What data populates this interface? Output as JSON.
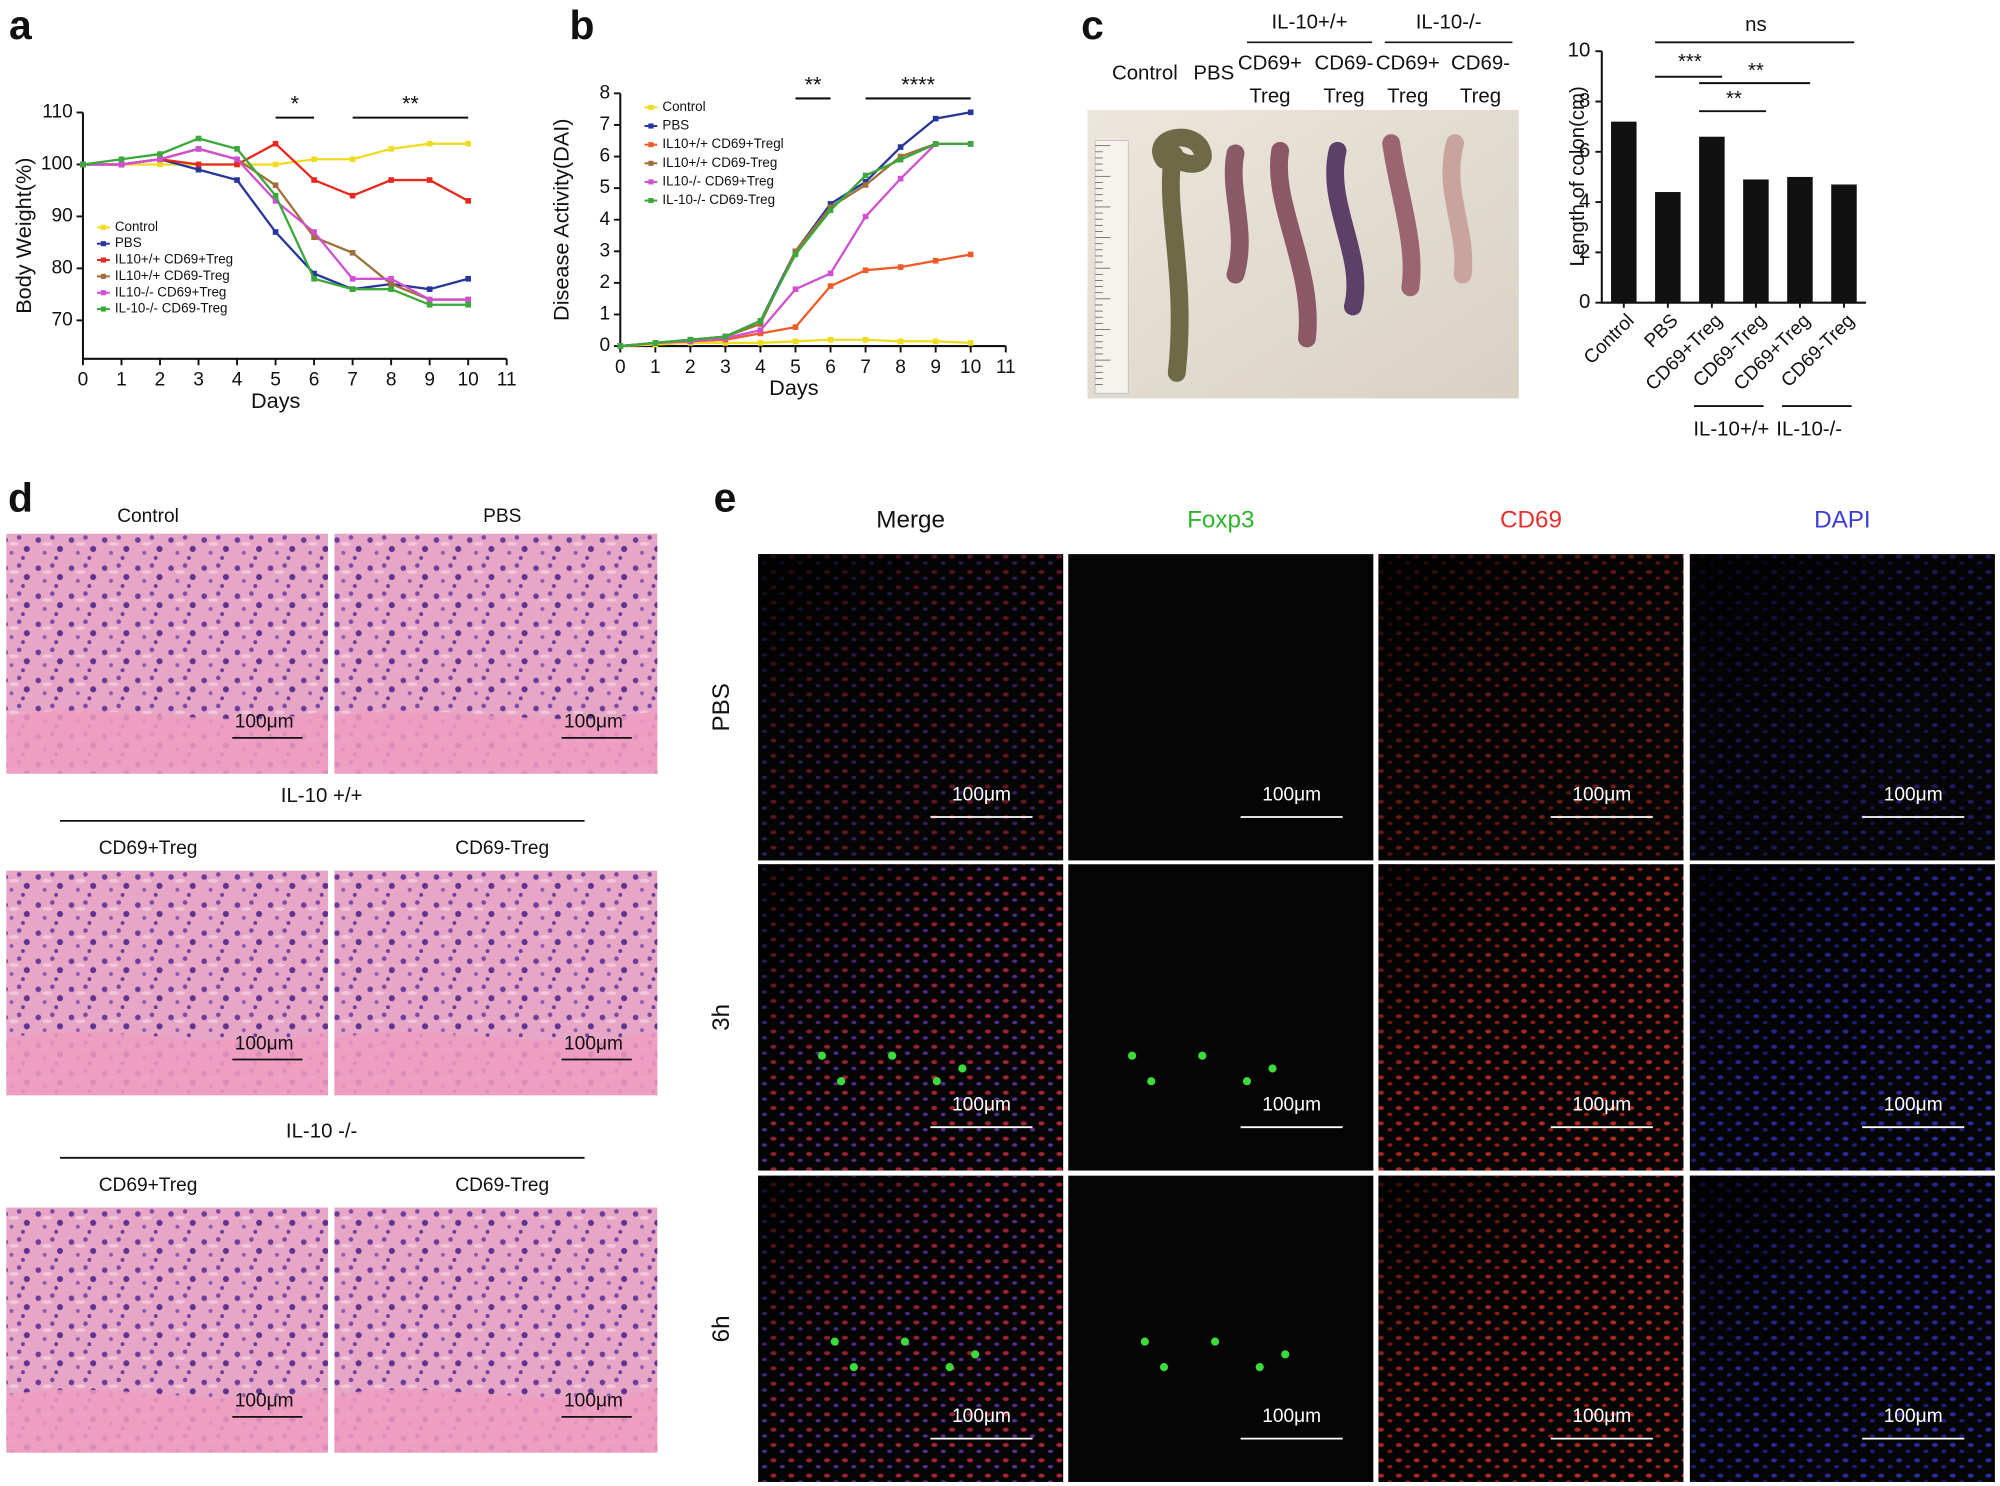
{
  "panel_labels": [
    "a",
    "b",
    "c",
    "d",
    "e"
  ],
  "chart_data": [
    {
      "type": "line",
      "y_label": "Body Weight(%)",
      "x_label": "Days",
      "x": [
        0,
        1,
        2,
        3,
        4,
        5,
        6,
        7,
        8,
        9,
        10
      ],
      "xlim": [
        0,
        11
      ],
      "xticks": [
        0,
        1,
        2,
        3,
        4,
        5,
        6,
        7,
        8,
        9,
        10,
        11
      ],
      "ylim": [
        62.6,
        110
      ],
      "yticks": [
        70,
        80,
        90,
        100,
        110
      ],
      "annotations": [
        "*",
        "**"
      ],
      "series": [
        {
          "name": "Control",
          "color": "#f0dc1e",
          "values": [
            100,
            100,
            100,
            100,
            100,
            100,
            101,
            101,
            103,
            104,
            104
          ]
        },
        {
          "name": "PBS",
          "color": "#26369a",
          "values": [
            100,
            100,
            101,
            99,
            97,
            87,
            79,
            76,
            77,
            76,
            78
          ]
        },
        {
          "name": "IL10+/+ CD69+Treg",
          "color": "#e8271e",
          "values": [
            100,
            100,
            101,
            100,
            100,
            104,
            97,
            94,
            97,
            97,
            93
          ]
        },
        {
          "name": "IL10+/+ CD69-Treg",
          "color": "#a0703a",
          "values": [
            100,
            100,
            101,
            103,
            101,
            96,
            86,
            83,
            77,
            74,
            74
          ]
        },
        {
          "name": "IL10-/- CD69+Treg",
          "color": "#d14fd1",
          "values": [
            100,
            100,
            101,
            103,
            101,
            93,
            87,
            78,
            78,
            74,
            74
          ]
        },
        {
          "name": "IL-10-/- CD69-Treg",
          "color": "#3aa83a",
          "values": [
            100,
            101,
            102,
            105,
            103,
            94,
            78,
            76,
            76,
            73,
            73
          ]
        }
      ]
    },
    {
      "type": "line",
      "y_label": "Disease Activity(DAI)",
      "x_label": "Days",
      "x": [
        0,
        1,
        2,
        3,
        4,
        5,
        6,
        7,
        8,
        9,
        10
      ],
      "xlim": [
        0,
        11
      ],
      "xticks": [
        0,
        1,
        2,
        3,
        4,
        5,
        6,
        7,
        8,
        9,
        10,
        11
      ],
      "ylim": [
        0,
        8
      ],
      "yticks": [
        0,
        1,
        2,
        3,
        4,
        5,
        6,
        7,
        8
      ],
      "annotations": [
        "**",
        "****"
      ],
      "series": [
        {
          "name": "Control",
          "color": "#f0dc1e",
          "values": [
            0,
            0.05,
            0.1,
            0.1,
            0.1,
            0.15,
            0.2,
            0.2,
            0.15,
            0.15,
            0.1
          ]
        },
        {
          "name": "PBS",
          "color": "#26369a",
          "values": [
            0,
            0.1,
            0.2,
            0.3,
            0.8,
            3.0,
            4.5,
            5.2,
            6.3,
            7.2,
            7.4
          ]
        },
        {
          "name": "IL10+/+ CD69+Tregl",
          "color": "#f05a28",
          "values": [
            0,
            0.1,
            0.15,
            0.2,
            0.4,
            0.6,
            1.9,
            2.4,
            2.5,
            2.7,
            2.9
          ]
        },
        {
          "name": "IL10+/+ CD69-Treg",
          "color": "#a0703a",
          "values": [
            0,
            0.1,
            0.2,
            0.3,
            0.7,
            3.0,
            4.4,
            5.1,
            6.0,
            6.4,
            6.4
          ]
        },
        {
          "name": "IL10-/- CD69+Treg",
          "color": "#d14fd1",
          "values": [
            0,
            0.1,
            0.15,
            0.25,
            0.5,
            1.8,
            2.3,
            4.1,
            5.3,
            6.4,
            6.4
          ]
        },
        {
          "name": "IL-10-/- CD69-Treg",
          "color": "#3aa83a",
          "values": [
            0,
            0.1,
            0.2,
            0.3,
            0.8,
            2.9,
            4.3,
            5.4,
            5.9,
            6.4,
            6.4
          ]
        }
      ]
    },
    {
      "type": "bar",
      "y_label": "Length of colon(cm)",
      "categories": [
        "Control",
        "PBS",
        "CD69+Treg",
        "CD69-Treg",
        "CD69+Treg",
        "CD69-Treg"
      ],
      "values": [
        7.2,
        4.4,
        6.6,
        4.9,
        5.0,
        4.7
      ],
      "color": "#111111",
      "ylim": [
        0,
        10
      ],
      "yticks": [
        0,
        2,
        4,
        6,
        8,
        10
      ],
      "groups": [
        "IL-10+/+",
        "IL-10-/-"
      ],
      "annotations": [
        "ns",
        "***",
        "**",
        "**"
      ]
    }
  ],
  "colon_photo": {
    "lanes": [
      "Control",
      "PBS",
      "CD69+",
      "CD69-",
      "CD69+",
      "CD69-"
    ],
    "lane_sub": "Treg",
    "groups": [
      "IL-10+/+",
      "IL-10-/-"
    ]
  },
  "histology": {
    "tiles": [
      "Control",
      "PBS",
      "CD69+Treg",
      "CD69-Treg",
      "CD69+Treg",
      "CD69-Treg"
    ],
    "groups": [
      "IL-10 +/+",
      "IL-10 -/-"
    ],
    "scale_bar": "100μm"
  },
  "fluorescence": {
    "columns": [
      "Merge",
      "Foxp3",
      "CD69",
      "DAPI"
    ],
    "column_colors": [
      "#111111",
      "#2db52d",
      "#e53030",
      "#3c3cd8"
    ],
    "rows": [
      "PBS",
      "3h",
      "6h"
    ],
    "scale_bar": "100μm"
  }
}
